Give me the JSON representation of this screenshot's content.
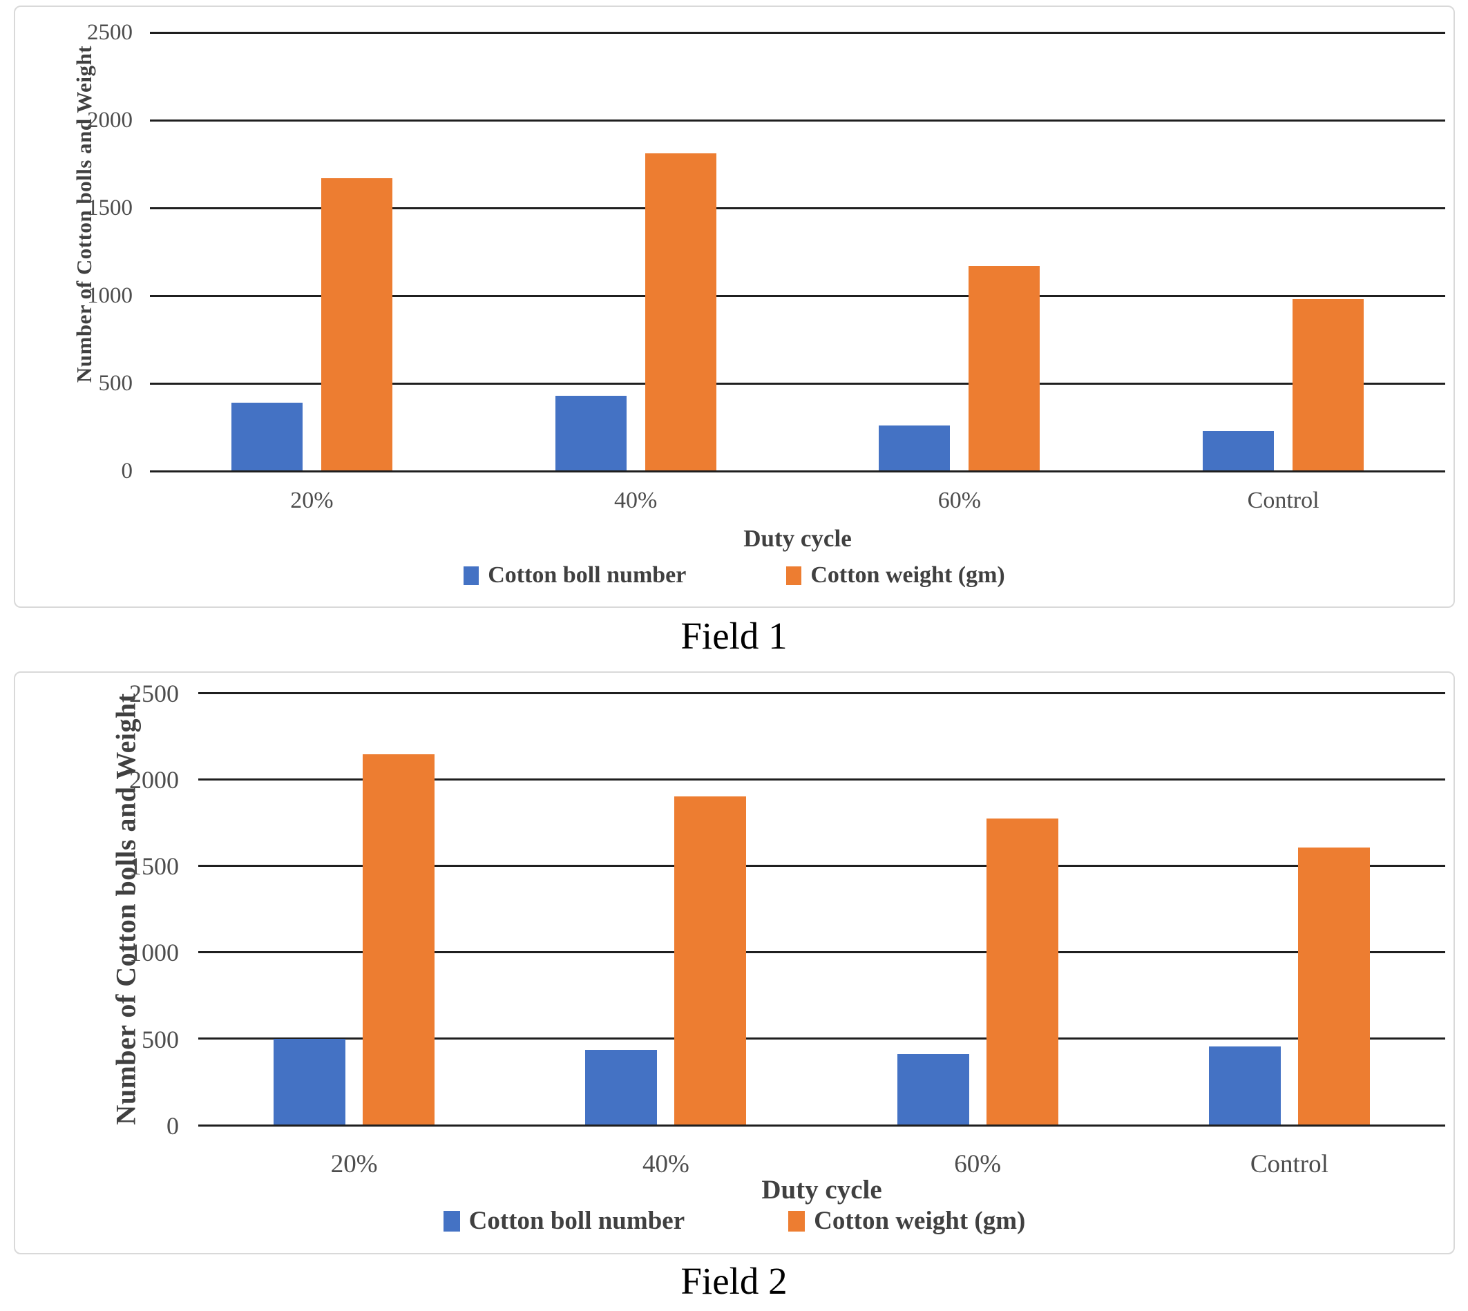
{
  "colors": {
    "series_blue": "#4472C4",
    "series_orange": "#ED7D31",
    "gridline": "#1f1f1f",
    "axis_text": "#4d4d4d",
    "title_text": "#404040",
    "panel_border": "#d9d9d9"
  },
  "chart_data": [
    {
      "type": "bar",
      "title": "Field 1",
      "categories": [
        "20%",
        "40%",
        "60%",
        "Control"
      ],
      "series": [
        {
          "name": "Cotton boll number",
          "color": "#4472C4",
          "values": [
            390,
            430,
            260,
            230
          ]
        },
        {
          "name": "Cotton weight (gm)",
          "color": "#ED7D31",
          "values": [
            1670,
            1810,
            1170,
            980
          ]
        }
      ],
      "xlabel": "Duty cycle",
      "ylabel": "Number of Cotton bolls and Weight",
      "ylim": [
        0,
        2500
      ],
      "ytick_interval": 500,
      "yticks": [
        "2500",
        "2000",
        "1500",
        "1000",
        "500",
        "0"
      ],
      "grid": "horizontal",
      "legend_position": "bottom"
    },
    {
      "type": "bar",
      "title": "Field 2",
      "categories": [
        "20%",
        "40%",
        "60%",
        "Control"
      ],
      "series": [
        {
          "name": "Cotton boll number",
          "color": "#4472C4",
          "values": [
            500,
            435,
            410,
            455
          ]
        },
        {
          "name": "Cotton weight (gm)",
          "color": "#ED7D31",
          "values": [
            2145,
            1900,
            1775,
            1605
          ]
        }
      ],
      "xlabel": "Duty cycle",
      "ylabel": "Number of Cotton bolls and Weight",
      "ylim": [
        0,
        2500
      ],
      "ytick_interval": 500,
      "yticks": [
        "2500",
        "2000",
        "1500",
        "1000",
        "500",
        "0"
      ],
      "grid": "horizontal",
      "legend_position": "bottom"
    }
  ]
}
